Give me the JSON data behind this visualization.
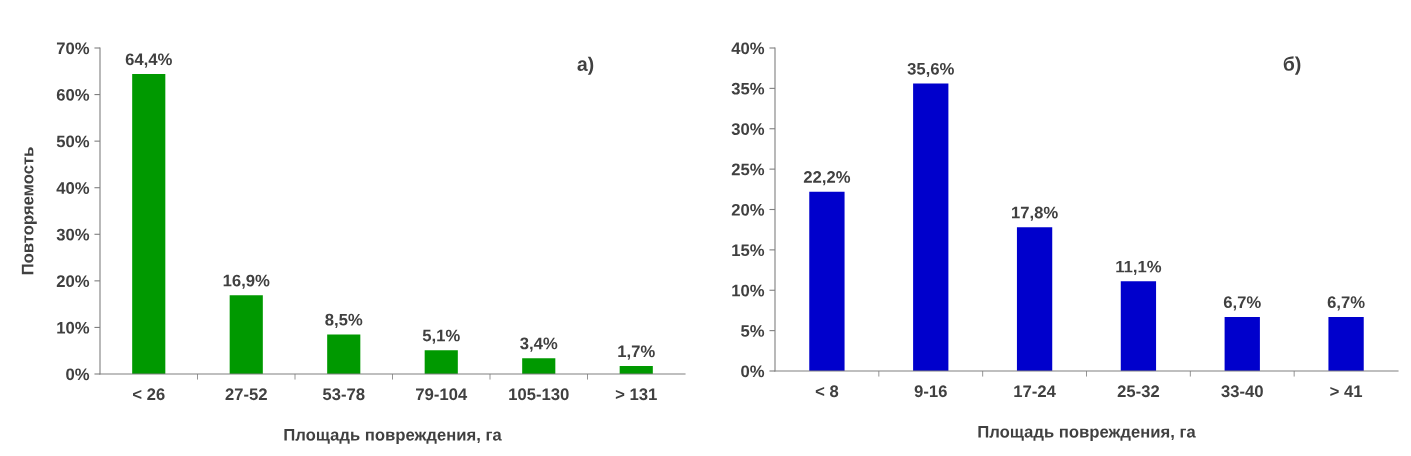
{
  "chart_data": [
    {
      "type": "bar",
      "ylabel": "Повторяемость",
      "xlabel": "Площадь повреждения, га",
      "annotations": [
        "а)"
      ],
      "categories": [
        "< 26",
        "27-52",
        "53-78",
        "79-104",
        "105-130",
        "> 131"
      ],
      "values": [
        64.4,
        16.9,
        8.5,
        5.1,
        3.4,
        1.7
      ],
      "color": "#009900",
      "value_labels": [
        "64,4%",
        "16,9%",
        "8,5%",
        "5,1%",
        "3,4%",
        "1,7%"
      ],
      "ylim": [
        0,
        70
      ],
      "yticks": [
        {
          "value": 0,
          "label": "0%"
        },
        {
          "value": 10,
          "label": "10%"
        },
        {
          "value": 20,
          "label": "20%"
        },
        {
          "value": 30,
          "label": "30%"
        },
        {
          "value": 40,
          "label": "40%"
        },
        {
          "value": 50,
          "label": "50%"
        },
        {
          "value": 60,
          "label": "60%"
        },
        {
          "value": 70,
          "label": "70%"
        }
      ],
      "grid": false,
      "legend": false
    },
    {
      "type": "bar",
      "xlabel": "Площадь повреждения, га",
      "annotations": [
        "б)"
      ],
      "categories": [
        "< 8",
        "9-16",
        "17-24",
        "25-32",
        "33-40",
        "> 41"
      ],
      "values": [
        22.2,
        35.6,
        17.8,
        11.1,
        6.7,
        6.7
      ],
      "color": "#0000cc",
      "value_labels": [
        "22,2%",
        "35,6%",
        "17,8%",
        "11,1%",
        "6,7%",
        "6,7%"
      ],
      "ylim": [
        0,
        40
      ],
      "yticks": [
        {
          "value": 0,
          "label": "0%"
        },
        {
          "value": 5,
          "label": "5%"
        },
        {
          "value": 10,
          "label": "10%"
        },
        {
          "value": 15,
          "label": "15%"
        },
        {
          "value": 20,
          "label": "20%"
        },
        {
          "value": 25,
          "label": "25%"
        },
        {
          "value": 30,
          "label": "30%"
        },
        {
          "value": 35,
          "label": "35%"
        },
        {
          "value": 40,
          "label": "40%"
        }
      ],
      "grid": false,
      "legend": false
    }
  ]
}
